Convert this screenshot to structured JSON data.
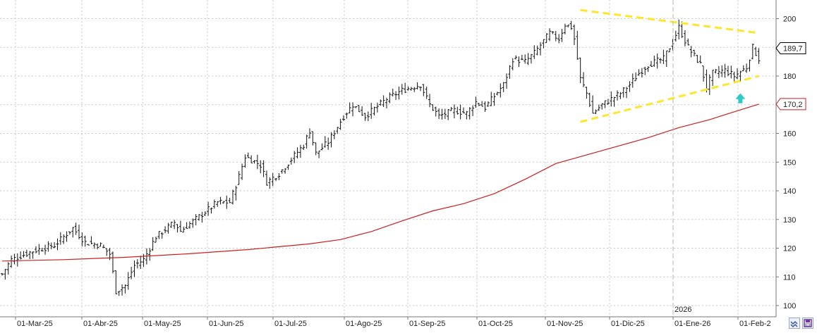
{
  "chart_data": {
    "type": "ohlc",
    "title": "",
    "xlabel": "",
    "ylabel": "",
    "ylim": [
      97,
      207
    ],
    "y_ticks": [
      100,
      110,
      120,
      130,
      140,
      150,
      160,
      170,
      180,
      190,
      200
    ],
    "x_ticks": [
      "01-Mar-25",
      "01-Abr-25",
      "01-May-25",
      "01-Jun-25",
      "01-Jul-25",
      "01-Ago-25",
      "01-Sep-25",
      "01-Oct-25",
      "01-Nov-25",
      "01-Dic-25",
      "01-Ene-26",
      "01-Feb-2"
    ],
    "year_marker": "2026",
    "price_tags": [
      {
        "label": "189,7",
        "value": 189.7,
        "color": "#000000"
      },
      {
        "label": "170,2",
        "value": 170.2,
        "color": "#cc1f1f"
      }
    ],
    "grid": true,
    "series": [
      {
        "kind": "price-bars",
        "anchors": [
          [
            0,
            111
          ],
          [
            3,
            116
          ],
          [
            10,
            119
          ],
          [
            17,
            121
          ],
          [
            23,
            127
          ],
          [
            27,
            122
          ],
          [
            32,
            121
          ],
          [
            35,
            118
          ],
          [
            37,
            105
          ],
          [
            40,
            107
          ],
          [
            43,
            114
          ],
          [
            46,
            116
          ],
          [
            50,
            124
          ],
          [
            56,
            129
          ],
          [
            58,
            126
          ],
          [
            64,
            131
          ],
          [
            70,
            136
          ],
          [
            74,
            136
          ],
          [
            77,
            145
          ],
          [
            79,
            152
          ],
          [
            84,
            149
          ],
          [
            86,
            143
          ],
          [
            90,
            146
          ],
          [
            94,
            151
          ],
          [
            98,
            156
          ],
          [
            100,
            161
          ],
          [
            102,
            153
          ],
          [
            106,
            157
          ],
          [
            111,
            166
          ],
          [
            114,
            170
          ],
          [
            116,
            168
          ],
          [
            118,
            166
          ],
          [
            125,
            172
          ],
          [
            130,
            175
          ],
          [
            136,
            177
          ],
          [
            139,
            170
          ],
          [
            142,
            166
          ],
          [
            147,
            168
          ],
          [
            151,
            167
          ],
          [
            154,
            171
          ],
          [
            157,
            169
          ],
          [
            160,
            173
          ],
          [
            163,
            177
          ],
          [
            166,
            186
          ],
          [
            170,
            185
          ],
          [
            173,
            188
          ],
          [
            178,
            195
          ],
          [
            181,
            193
          ],
          [
            183,
            198
          ],
          [
            185,
            197
          ],
          [
            186,
            193
          ],
          [
            188,
            179
          ],
          [
            190,
            174
          ],
          [
            192,
            167
          ],
          [
            195,
            170
          ],
          [
            198,
            172
          ],
          [
            201,
            174
          ],
          [
            204,
            177
          ],
          [
            207,
            181
          ],
          [
            210,
            184
          ],
          [
            215,
            186
          ],
          [
            218,
            192
          ],
          [
            220,
            197
          ],
          [
            223,
            190
          ],
          [
            227,
            184
          ],
          [
            229,
            176
          ],
          [
            231,
            181
          ],
          [
            235,
            182
          ],
          [
            238,
            180
          ],
          [
            242,
            183
          ],
          [
            244,
            190
          ],
          [
            246,
            186
          ]
        ]
      },
      {
        "kind": "moving-average",
        "color": "#cc1f1f",
        "points": [
          [
            0,
            115.5
          ],
          [
            20,
            116
          ],
          [
            40,
            116.8
          ],
          [
            60,
            118
          ],
          [
            80,
            119.5
          ],
          [
            100,
            121.5
          ],
          [
            110,
            123
          ],
          [
            120,
            125.8
          ],
          [
            130,
            129.5
          ],
          [
            140,
            133
          ],
          [
            150,
            135.5
          ],
          [
            160,
            139
          ],
          [
            170,
            144
          ],
          [
            180,
            149.5
          ],
          [
            190,
            152.5
          ],
          [
            200,
            155.5
          ],
          [
            210,
            158.5
          ],
          [
            220,
            162
          ],
          [
            230,
            164.8
          ],
          [
            240,
            168.2
          ],
          [
            246,
            170.2
          ]
        ]
      },
      {
        "kind": "trendlines",
        "color": "#ffe62b",
        "lines": [
          {
            "from": [
              188,
              203
            ],
            "to": [
              246,
              195
            ]
          },
          {
            "from": [
              188,
              164
            ],
            "to": [
              246,
              180
            ]
          }
        ]
      }
    ],
    "markers": [
      {
        "kind": "up-arrow",
        "color": "#2ec9c9",
        "x": 240,
        "y": 172
      }
    ]
  }
}
